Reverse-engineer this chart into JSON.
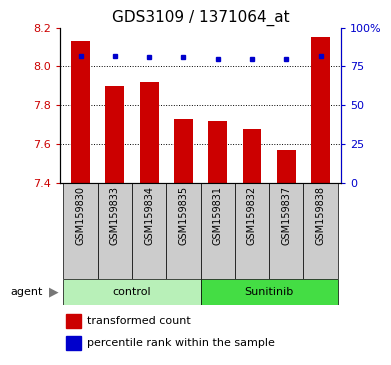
{
  "title": "GDS3109 / 1371064_at",
  "samples": [
    "GSM159830",
    "GSM159833",
    "GSM159834",
    "GSM159835",
    "GSM159831",
    "GSM159832",
    "GSM159837",
    "GSM159838"
  ],
  "bar_values": [
    8.13,
    7.9,
    7.92,
    7.73,
    7.72,
    7.68,
    7.57,
    8.15
  ],
  "percentile_values": [
    82,
    82,
    81,
    81,
    80,
    80,
    80,
    82
  ],
  "bar_color": "#cc0000",
  "dot_color": "#0000cc",
  "ylim_left": [
    7.4,
    8.2
  ],
  "ylim_right": [
    0,
    100
  ],
  "yticks_left": [
    7.4,
    7.6,
    7.8,
    8.0,
    8.2
  ],
  "yticks_right": [
    0,
    25,
    50,
    75,
    100
  ],
  "ytick_labels_right": [
    "0",
    "25",
    "50",
    "75",
    "100%"
  ],
  "gridlines": [
    7.6,
    7.8,
    8.0
  ],
  "group_labels": [
    "control",
    "Sunitinib"
  ],
  "group_ranges": [
    [
      0,
      3
    ],
    [
      4,
      7
    ]
  ],
  "group_colors": [
    "#b8f0b8",
    "#44dd44"
  ],
  "legend_items": [
    "transformed count",
    "percentile rank within the sample"
  ],
  "legend_colors": [
    "#cc0000",
    "#0000cc"
  ],
  "agent_label": "agent",
  "bar_bottom": 7.4,
  "bar_width": 0.55,
  "title_fontsize": 11,
  "sample_bg": "#cccccc",
  "plot_bg": "#ffffff"
}
